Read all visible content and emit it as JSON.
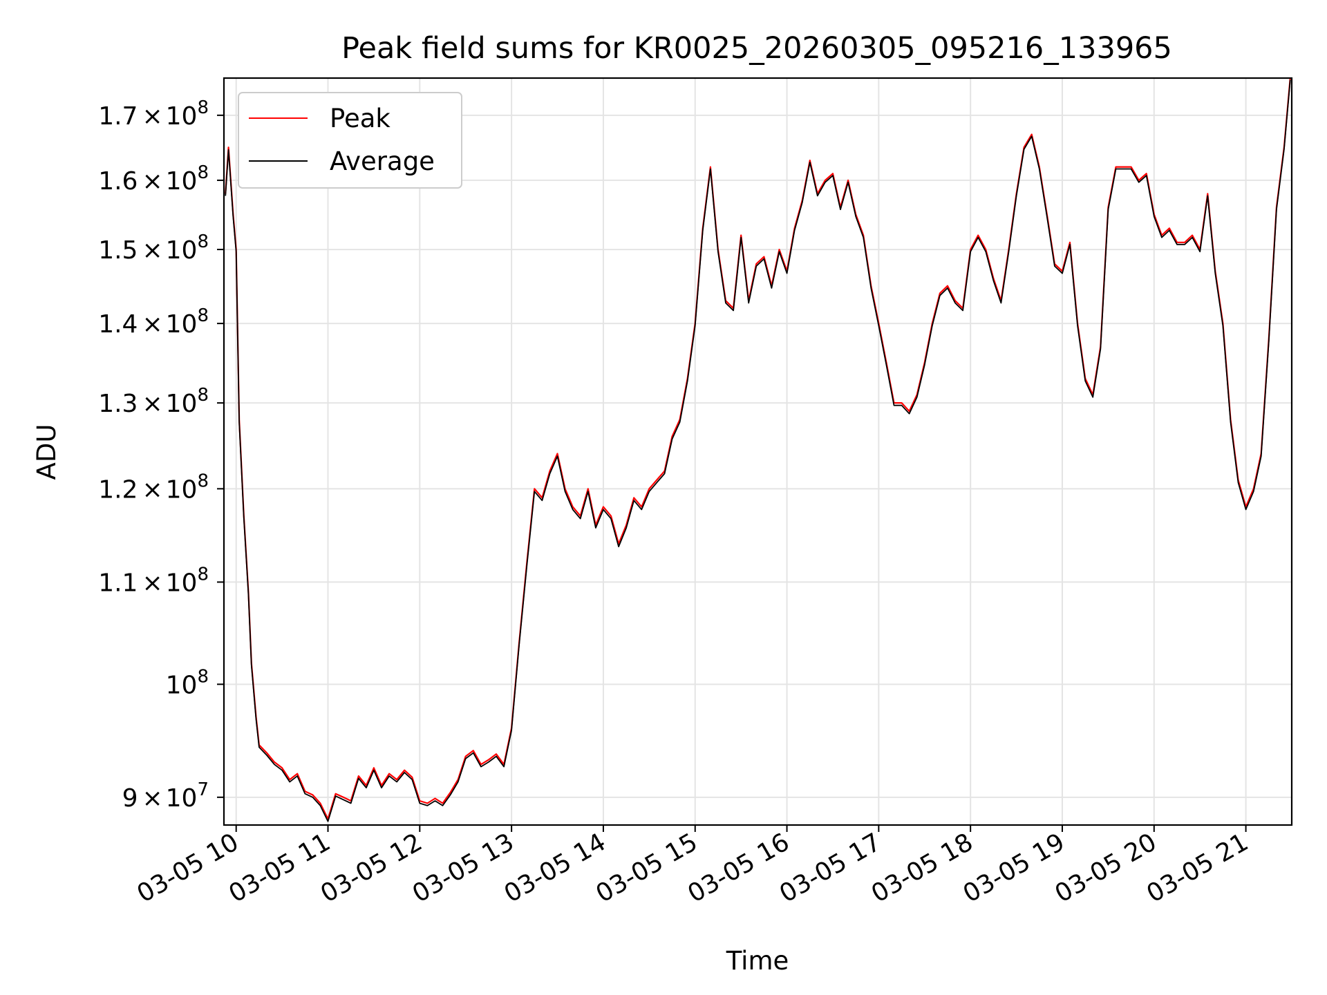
{
  "chart_data": {
    "type": "line",
    "title": "Peak field sums for KR0025_20260305_095216_133965",
    "xlabel": "Time",
    "ylabel": "ADU",
    "y_scale": "log",
    "ylim": [
      87700000,
      176000000
    ],
    "xlim": [
      "2026-03-05 09:52",
      "2026-03-05 21:30"
    ],
    "grid": true,
    "legend_position": "top-left",
    "x_ticks": [
      {
        "label": "03-05 10",
        "t": "2026-03-05 10:00"
      },
      {
        "label": "03-05 11",
        "t": "2026-03-05 11:00"
      },
      {
        "label": "03-05 12",
        "t": "2026-03-05 12:00"
      },
      {
        "label": "03-05 13",
        "t": "2026-03-05 13:00"
      },
      {
        "label": "03-05 14",
        "t": "2026-03-05 14:00"
      },
      {
        "label": "03-05 15",
        "t": "2026-03-05 15:00"
      },
      {
        "label": "03-05 16",
        "t": "2026-03-05 16:00"
      },
      {
        "label": "03-05 17",
        "t": "2026-03-05 17:00"
      },
      {
        "label": "03-05 18",
        "t": "2026-03-05 18:00"
      },
      {
        "label": "03-05 19",
        "t": "2026-03-05 19:00"
      },
      {
        "label": "03-05 20",
        "t": "2026-03-05 20:00"
      },
      {
        "label": "03-05 21",
        "t": "2026-03-05 21:00"
      }
    ],
    "y_ticks": [
      {
        "value": 90000000,
        "mantissa": "9",
        "exp": "7"
      },
      {
        "value": 100000000,
        "mantissa": "",
        "exp": "8"
      },
      {
        "value": 110000000,
        "mantissa": "1.1",
        "exp": "8"
      },
      {
        "value": 120000000,
        "mantissa": "1.2",
        "exp": "8"
      },
      {
        "value": 130000000,
        "mantissa": "1.3",
        "exp": "8"
      },
      {
        "value": 140000000,
        "mantissa": "1.4",
        "exp": "8"
      },
      {
        "value": 150000000,
        "mantissa": "1.5",
        "exp": "8"
      },
      {
        "value": 160000000,
        "mantissa": "1.6",
        "exp": "8"
      },
      {
        "value": 170000000,
        "mantissa": "1.7",
        "exp": "8"
      }
    ],
    "series": [
      {
        "name": "Peak",
        "color": "#ff0000",
        "x": [
          "2026-03-05 09:53",
          "2026-03-05 09:55",
          "2026-03-05 09:58",
          "2026-03-05 10:00",
          "2026-03-05 10:02",
          "2026-03-05 10:05",
          "2026-03-05 10:08",
          "2026-03-05 10:10",
          "2026-03-05 10:13",
          "2026-03-05 10:15",
          "2026-03-05 10:20",
          "2026-03-05 10:25",
          "2026-03-05 10:30",
          "2026-03-05 10:35",
          "2026-03-05 10:40",
          "2026-03-05 10:45",
          "2026-03-05 10:50",
          "2026-03-05 10:55",
          "2026-03-05 11:00",
          "2026-03-05 11:05",
          "2026-03-05 11:10",
          "2026-03-05 11:15",
          "2026-03-05 11:20",
          "2026-03-05 11:25",
          "2026-03-05 11:30",
          "2026-03-05 11:35",
          "2026-03-05 11:40",
          "2026-03-05 11:45",
          "2026-03-05 11:50",
          "2026-03-05 11:55",
          "2026-03-05 12:00",
          "2026-03-05 12:05",
          "2026-03-05 12:10",
          "2026-03-05 12:15",
          "2026-03-05 12:20",
          "2026-03-05 12:25",
          "2026-03-05 12:30",
          "2026-03-05 12:35",
          "2026-03-05 12:40",
          "2026-03-05 12:45",
          "2026-03-05 12:50",
          "2026-03-05 12:55",
          "2026-03-05 13:00",
          "2026-03-05 13:05",
          "2026-03-05 13:10",
          "2026-03-05 13:15",
          "2026-03-05 13:20",
          "2026-03-05 13:25",
          "2026-03-05 13:30",
          "2026-03-05 13:35",
          "2026-03-05 13:40",
          "2026-03-05 13:45",
          "2026-03-05 13:50",
          "2026-03-05 13:55",
          "2026-03-05 14:00",
          "2026-03-05 14:05",
          "2026-03-05 14:10",
          "2026-03-05 14:15",
          "2026-03-05 14:20",
          "2026-03-05 14:25",
          "2026-03-05 14:30",
          "2026-03-05 14:35",
          "2026-03-05 14:40",
          "2026-03-05 14:45",
          "2026-03-05 14:50",
          "2026-03-05 14:55",
          "2026-03-05 15:00",
          "2026-03-05 15:05",
          "2026-03-05 15:10",
          "2026-03-05 15:15",
          "2026-03-05 15:20",
          "2026-03-05 15:25",
          "2026-03-05 15:30",
          "2026-03-05 15:35",
          "2026-03-05 15:40",
          "2026-03-05 15:45",
          "2026-03-05 15:50",
          "2026-03-05 15:55",
          "2026-03-05 16:00",
          "2026-03-05 16:05",
          "2026-03-05 16:10",
          "2026-03-05 16:15",
          "2026-03-05 16:20",
          "2026-03-05 16:25",
          "2026-03-05 16:30",
          "2026-03-05 16:35",
          "2026-03-05 16:40",
          "2026-03-05 16:45",
          "2026-03-05 16:50",
          "2026-03-05 16:55",
          "2026-03-05 17:00",
          "2026-03-05 17:05",
          "2026-03-05 17:10",
          "2026-03-05 17:15",
          "2026-03-05 17:20",
          "2026-03-05 17:25",
          "2026-03-05 17:30",
          "2026-03-05 17:35",
          "2026-03-05 17:40",
          "2026-03-05 17:45",
          "2026-03-05 17:50",
          "2026-03-05 17:55",
          "2026-03-05 18:00",
          "2026-03-05 18:05",
          "2026-03-05 18:10",
          "2026-03-05 18:15",
          "2026-03-05 18:20",
          "2026-03-05 18:25",
          "2026-03-05 18:30",
          "2026-03-05 18:35",
          "2026-03-05 18:40",
          "2026-03-05 18:45",
          "2026-03-05 18:50",
          "2026-03-05 18:55",
          "2026-03-05 19:00",
          "2026-03-05 19:05",
          "2026-03-05 19:10",
          "2026-03-05 19:15",
          "2026-03-05 19:20",
          "2026-03-05 19:25",
          "2026-03-05 19:30",
          "2026-03-05 19:35",
          "2026-03-05 19:40",
          "2026-03-05 19:45",
          "2026-03-05 19:50",
          "2026-03-05 19:55",
          "2026-03-05 20:00",
          "2026-03-05 20:05",
          "2026-03-05 20:10",
          "2026-03-05 20:15",
          "2026-03-05 20:20",
          "2026-03-05 20:25",
          "2026-03-05 20:30",
          "2026-03-05 20:35",
          "2026-03-05 20:40",
          "2026-03-05 20:45",
          "2026-03-05 20:50",
          "2026-03-05 20:55",
          "2026-03-05 21:00",
          "2026-03-05 21:05",
          "2026-03-05 21:10",
          "2026-03-05 21:15",
          "2026-03-05 21:20",
          "2026-03-05 21:25",
          "2026-03-05 21:29"
        ],
        "values": [
          158000000,
          165000000,
          155000000,
          150000000,
          128000000,
          117000000,
          109000000,
          102000000,
          97000000,
          94500000,
          93800000,
          93000000,
          92500000,
          91500000,
          92000000,
          90500000,
          90200000,
          89500000,
          88200000,
          90300000,
          90000000,
          89700000,
          91800000,
          91000000,
          92500000,
          91000000,
          92000000,
          91500000,
          92300000,
          91700000,
          89700000,
          89500000,
          89900000,
          89500000,
          90400000,
          91500000,
          93500000,
          94000000,
          92800000,
          93200000,
          93700000,
          92800000,
          96000000,
          104000000,
          112000000,
          120000000,
          119000000,
          122000000,
          124000000,
          120000000,
          118000000,
          117000000,
          120000000,
          116000000,
          118000000,
          117000000,
          114000000,
          116000000,
          119000000,
          118000000,
          120000000,
          121000000,
          122000000,
          126000000,
          128000000,
          133000000,
          140000000,
          153000000,
          162000000,
          150000000,
          143000000,
          142000000,
          152000000,
          143000000,
          148000000,
          149000000,
          145000000,
          150000000,
          147000000,
          153000000,
          157000000,
          163000000,
          158000000,
          160000000,
          161000000,
          156000000,
          160000000,
          155000000,
          152000000,
          145000000,
          140000000,
          135000000,
          130000000,
          130000000,
          129000000,
          131000000,
          135000000,
          140000000,
          144000000,
          145000000,
          143000000,
          142000000,
          150000000,
          152000000,
          150000000,
          146000000,
          143000000,
          150000000,
          158000000,
          165000000,
          167000000,
          162000000,
          155000000,
          148000000,
          147000000,
          151000000,
          140000000,
          133000000,
          131000000,
          137000000,
          156000000,
          162000000,
          162000000,
          162000000,
          160000000,
          161000000,
          155000000,
          152000000,
          153000000,
          151000000,
          151000000,
          152000000,
          150000000,
          158000000,
          147000000,
          140000000,
          128000000,
          121000000,
          118000000,
          120000000,
          124000000,
          138000000,
          156000000,
          165000000,
          176000000
        ]
      },
      {
        "name": "Average",
        "color": "#000000",
        "x": [
          "2026-03-05 09:53",
          "2026-03-05 09:55",
          "2026-03-05 09:58",
          "2026-03-05 10:00",
          "2026-03-05 10:02",
          "2026-03-05 10:05",
          "2026-03-05 10:08",
          "2026-03-05 10:10",
          "2026-03-05 10:13",
          "2026-03-05 10:15",
          "2026-03-05 10:20",
          "2026-03-05 10:25",
          "2026-03-05 10:30",
          "2026-03-05 10:35",
          "2026-03-05 10:40",
          "2026-03-05 10:45",
          "2026-03-05 10:50",
          "2026-03-05 10:55",
          "2026-03-05 11:00",
          "2026-03-05 11:05",
          "2026-03-05 11:10",
          "2026-03-05 11:15",
          "2026-03-05 11:20",
          "2026-03-05 11:25",
          "2026-03-05 11:30",
          "2026-03-05 11:35",
          "2026-03-05 11:40",
          "2026-03-05 11:45",
          "2026-03-05 11:50",
          "2026-03-05 11:55",
          "2026-03-05 12:00",
          "2026-03-05 12:05",
          "2026-03-05 12:10",
          "2026-03-05 12:15",
          "2026-03-05 12:20",
          "2026-03-05 12:25",
          "2026-03-05 12:30",
          "2026-03-05 12:35",
          "2026-03-05 12:40",
          "2026-03-05 12:45",
          "2026-03-05 12:50",
          "2026-03-05 12:55",
          "2026-03-05 13:00",
          "2026-03-05 13:05",
          "2026-03-05 13:10",
          "2026-03-05 13:15",
          "2026-03-05 13:20",
          "2026-03-05 13:25",
          "2026-03-05 13:30",
          "2026-03-05 13:35",
          "2026-03-05 13:40",
          "2026-03-05 13:45",
          "2026-03-05 13:50",
          "2026-03-05 13:55",
          "2026-03-05 14:00",
          "2026-03-05 14:05",
          "2026-03-05 14:10",
          "2026-03-05 14:15",
          "2026-03-05 14:20",
          "2026-03-05 14:25",
          "2026-03-05 14:30",
          "2026-03-05 14:35",
          "2026-03-05 14:40",
          "2026-03-05 14:45",
          "2026-03-05 14:50",
          "2026-03-05 14:55",
          "2026-03-05 15:00",
          "2026-03-05 15:05",
          "2026-03-05 15:10",
          "2026-03-05 15:15",
          "2026-03-05 15:20",
          "2026-03-05 15:25",
          "2026-03-05 15:30",
          "2026-03-05 15:35",
          "2026-03-05 15:40",
          "2026-03-05 15:45",
          "2026-03-05 15:50",
          "2026-03-05 15:55",
          "2026-03-05 16:00",
          "2026-03-05 16:05",
          "2026-03-05 16:10",
          "2026-03-05 16:15",
          "2026-03-05 16:20",
          "2026-03-05 16:25",
          "2026-03-05 16:30",
          "2026-03-05 16:35",
          "2026-03-05 16:40",
          "2026-03-05 16:45",
          "2026-03-05 16:50",
          "2026-03-05 16:55",
          "2026-03-05 17:00",
          "2026-03-05 17:05",
          "2026-03-05 17:10",
          "2026-03-05 17:15",
          "2026-03-05 17:20",
          "2026-03-05 17:25",
          "2026-03-05 17:30",
          "2026-03-05 17:35",
          "2026-03-05 17:40",
          "2026-03-05 17:45",
          "2026-03-05 17:50",
          "2026-03-05 17:55",
          "2026-03-05 18:00",
          "2026-03-05 18:05",
          "2026-03-05 18:10",
          "2026-03-05 18:15",
          "2026-03-05 18:20",
          "2026-03-05 18:25",
          "2026-03-05 18:30",
          "2026-03-05 18:35",
          "2026-03-05 18:40",
          "2026-03-05 18:45",
          "2026-03-05 18:50",
          "2026-03-05 18:55",
          "2026-03-05 19:00",
          "2026-03-05 19:05",
          "2026-03-05 19:10",
          "2026-03-05 19:15",
          "2026-03-05 19:20",
          "2026-03-05 19:25",
          "2026-03-05 19:30",
          "2026-03-05 19:35",
          "2026-03-05 19:40",
          "2026-03-05 19:45",
          "2026-03-05 19:50",
          "2026-03-05 19:55",
          "2026-03-05 20:00",
          "2026-03-05 20:05",
          "2026-03-05 20:10",
          "2026-03-05 20:15",
          "2026-03-05 20:20",
          "2026-03-05 20:25",
          "2026-03-05 20:30",
          "2026-03-05 20:35",
          "2026-03-05 20:40",
          "2026-03-05 20:45",
          "2026-03-05 20:50",
          "2026-03-05 20:55",
          "2026-03-05 21:00",
          "2026-03-05 21:05",
          "2026-03-05 21:10",
          "2026-03-05 21:15",
          "2026-03-05 21:20",
          "2026-03-05 21:25",
          "2026-03-05 21:29"
        ],
        "values": [
          157700000,
          164600000,
          154700000,
          149700000,
          127700000,
          116800000,
          108800000,
          101800000,
          96800000,
          94300000,
          93600000,
          92800000,
          92300000,
          91300000,
          91800000,
          90300000,
          90000000,
          89300000,
          88000000,
          90100000,
          89800000,
          89500000,
          91600000,
          90800000,
          92300000,
          90800000,
          91800000,
          91300000,
          92100000,
          91500000,
          89500000,
          89300000,
          89700000,
          89300000,
          90200000,
          91300000,
          93300000,
          93800000,
          92600000,
          93000000,
          93500000,
          92600000,
          95800000,
          103800000,
          111700000,
          119700000,
          118700000,
          121700000,
          123700000,
          119700000,
          117700000,
          116700000,
          119700000,
          115700000,
          117700000,
          116700000,
          113700000,
          115700000,
          118700000,
          117700000,
          119700000,
          120700000,
          121700000,
          125700000,
          127700000,
          132700000,
          139700000,
          152700000,
          161700000,
          149700000,
          142700000,
          141700000,
          151700000,
          142700000,
          147700000,
          148700000,
          144700000,
          149700000,
          146700000,
          152700000,
          156700000,
          162700000,
          157700000,
          159700000,
          160700000,
          155700000,
          159700000,
          154700000,
          151700000,
          144700000,
          139700000,
          134700000,
          129700000,
          129700000,
          128700000,
          130700000,
          134700000,
          139700000,
          143700000,
          144700000,
          142700000,
          141700000,
          149700000,
          151700000,
          149700000,
          145700000,
          142700000,
          149700000,
          157700000,
          164700000,
          166700000,
          161700000,
          154700000,
          147700000,
          146700000,
          150700000,
          139700000,
          132700000,
          130700000,
          136700000,
          155700000,
          161700000,
          161700000,
          161700000,
          159700000,
          160700000,
          154700000,
          151700000,
          152700000,
          150700000,
          150700000,
          151700000,
          149700000,
          157700000,
          146700000,
          139700000,
          127700000,
          120700000,
          117700000,
          119700000,
          123700000,
          137700000,
          155700000,
          164700000,
          175700000
        ]
      }
    ]
  }
}
